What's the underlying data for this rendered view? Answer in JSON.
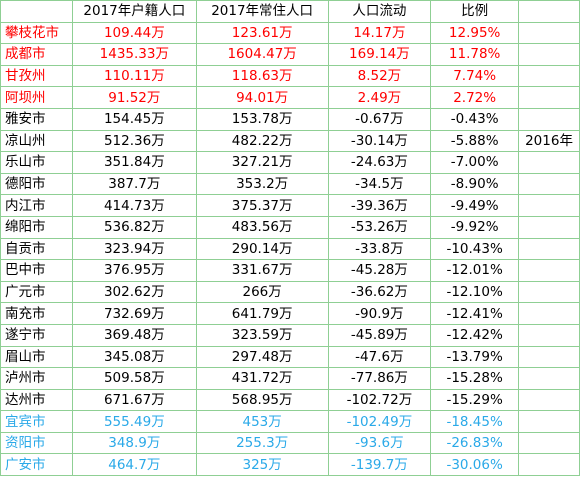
{
  "colors": {
    "red": "#ff0000",
    "black": "#000000",
    "blue": "#2aa9e8",
    "grid": "#8fcf94"
  },
  "header": [
    "",
    "2017年户籍人口",
    "2017年常住人口",
    "人口流动",
    "比例",
    ""
  ],
  "rows": [
    {
      "city": "攀枝花市",
      "hukou": "109.44万",
      "resident": "123.61万",
      "flow": "14.17万",
      "ratio": "12.95%",
      "extra": "",
      "color": "red"
    },
    {
      "city": "成都市",
      "hukou": "1435.33万",
      "resident": "1604.47万",
      "flow": "169.14万",
      "ratio": "11.78%",
      "extra": "",
      "color": "red"
    },
    {
      "city": "甘孜州",
      "hukou": "110.11万",
      "resident": "118.63万",
      "flow": "8.52万",
      "ratio": "7.74%",
      "extra": "",
      "color": "red"
    },
    {
      "city": "阿坝州",
      "hukou": "91.52万",
      "resident": "94.01万",
      "flow": "2.49万",
      "ratio": "2.72%",
      "extra": "",
      "color": "red"
    },
    {
      "city": "雅安市",
      "hukou": "154.45万",
      "resident": "153.78万",
      "flow": "-0.67万",
      "ratio": "-0.43%",
      "extra": "",
      "color": "black"
    },
    {
      "city": "凉山州",
      "hukou": "512.36万",
      "resident": "482.22万",
      "flow": "-30.14万",
      "ratio": "-5.88%",
      "extra": "2016年",
      "color": "black"
    },
    {
      "city": "乐山市",
      "hukou": "351.84万",
      "resident": "327.21万",
      "flow": "-24.63万",
      "ratio": "-7.00%",
      "extra": "",
      "color": "black"
    },
    {
      "city": "德阳市",
      "hukou": "387.7万",
      "resident": "353.2万",
      "flow": "-34.5万",
      "ratio": "-8.90%",
      "extra": "",
      "color": "black"
    },
    {
      "city": "内江市",
      "hukou": "414.73万",
      "resident": "375.37万",
      "flow": "-39.36万",
      "ratio": "-9.49%",
      "extra": "",
      "color": "black"
    },
    {
      "city": "绵阳市",
      "hukou": "536.82万",
      "resident": "483.56万",
      "flow": "-53.26万",
      "ratio": "-9.92%",
      "extra": "",
      "color": "black"
    },
    {
      "city": "自贡市",
      "hukou": "323.94万",
      "resident": "290.14万",
      "flow": "-33.8万",
      "ratio": "-10.43%",
      "extra": "",
      "color": "black"
    },
    {
      "city": "巴中市",
      "hukou": "376.95万",
      "resident": "331.67万",
      "flow": "-45.28万",
      "ratio": "-12.01%",
      "extra": "",
      "color": "black"
    },
    {
      "city": "广元市",
      "hukou": "302.62万",
      "resident": "266万",
      "flow": "-36.62万",
      "ratio": "-12.10%",
      "extra": "",
      "color": "black"
    },
    {
      "city": "南充市",
      "hukou": "732.69万",
      "resident": "641.79万",
      "flow": "-90.9万",
      "ratio": "-12.41%",
      "extra": "",
      "color": "black"
    },
    {
      "city": "遂宁市",
      "hukou": "369.48万",
      "resident": "323.59万",
      "flow": "-45.89万",
      "ratio": "-12.42%",
      "extra": "",
      "color": "black"
    },
    {
      "city": "眉山市",
      "hukou": "345.08万",
      "resident": "297.48万",
      "flow": "-47.6万",
      "ratio": "-13.79%",
      "extra": "",
      "color": "black"
    },
    {
      "city": "泸州市",
      "hukou": "509.58万",
      "resident": "431.72万",
      "flow": "-77.86万",
      "ratio": "-15.28%",
      "extra": "",
      "color": "black"
    },
    {
      "city": "达州市",
      "hukou": "671.67万",
      "resident": "568.95万",
      "flow": "-102.72万",
      "ratio": "-15.29%",
      "extra": "",
      "color": "black"
    },
    {
      "city": "宜宾市",
      "hukou": "555.49万",
      "resident": "453万",
      "flow": "-102.49万",
      "ratio": "-18.45%",
      "extra": "",
      "color": "blue"
    },
    {
      "city": "资阳市",
      "hukou": "348.9万",
      "resident": "255.3万",
      "flow": "-93.6万",
      "ratio": "-26.83%",
      "extra": "",
      "color": "blue"
    },
    {
      "city": "广安市",
      "hukou": "464.7万",
      "resident": "325万",
      "flow": "-139.7万",
      "ratio": "-30.06%",
      "extra": "",
      "color": "blue"
    }
  ]
}
